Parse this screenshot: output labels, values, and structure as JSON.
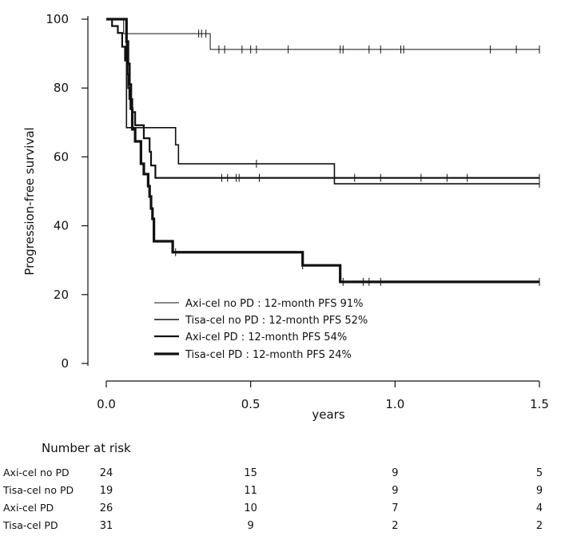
{
  "chart_data": {
    "type": "line",
    "title": "",
    "xlabel": "years",
    "ylabel": "Progression-free survival",
    "xlim": [
      0,
      1.5
    ],
    "ylim": [
      0,
      100
    ],
    "x_ticks": [
      "0.0",
      "0.5",
      "1.0",
      "1.5"
    ],
    "y_ticks": [
      "0",
      "20",
      "40",
      "60",
      "80",
      "100"
    ],
    "grid": false,
    "legend_position": "bottom-center",
    "series": [
      {
        "name": "Axi-cel no PD : 12-month PFS 91%",
        "line_width": 1,
        "steps": [
          [
            0,
            100
          ],
          [
            0.06,
            95.8
          ],
          [
            0.36,
            91.2
          ],
          [
            1.5,
            91.2
          ]
        ],
        "censors": [
          0.32,
          0.33,
          0.345,
          0.39,
          0.41,
          0.47,
          0.5,
          0.52,
          0.63,
          0.81,
          0.82,
          0.91,
          0.95,
          1.02,
          1.03,
          1.33,
          1.42,
          1.5
        ]
      },
      {
        "name": "Tisa-cel no PD : 12-month PFS 52%",
        "line_width": 1.6,
        "steps": [
          [
            0,
            100
          ],
          [
            0.07,
            68.5
          ],
          [
            0.24,
            63.5
          ],
          [
            0.25,
            58
          ],
          [
            0.79,
            52.2
          ],
          [
            1.5,
            52.2
          ]
        ],
        "censors": [
          0.52,
          1.5
        ]
      },
      {
        "name": "Axi-cel PD : 12-month PFS 54%",
        "line_width": 2.2,
        "steps": [
          [
            0,
            100
          ],
          [
            0.02,
            98
          ],
          [
            0.04,
            96
          ],
          [
            0.055,
            92
          ],
          [
            0.065,
            88
          ],
          [
            0.072,
            84
          ],
          [
            0.076,
            80
          ],
          [
            0.08,
            76.8
          ],
          [
            0.09,
            73
          ],
          [
            0.1,
            69.2
          ],
          [
            0.13,
            65.4
          ],
          [
            0.15,
            61.5
          ],
          [
            0.155,
            57.5
          ],
          [
            0.17,
            53.9
          ],
          [
            1.5,
            53.9
          ]
        ],
        "censors": [
          0.4,
          0.42,
          0.45,
          0.46,
          0.53,
          0.86,
          0.95,
          1.09,
          1.18,
          1.25,
          1.5
        ]
      },
      {
        "name": "Tisa-cel PD : 12-month PFS 24%",
        "line_width": 3.2,
        "steps": [
          [
            0,
            100
          ],
          [
            0.07,
            93.5
          ],
          [
            0.075,
            87
          ],
          [
            0.08,
            81
          ],
          [
            0.085,
            74
          ],
          [
            0.09,
            68
          ],
          [
            0.1,
            64.5
          ],
          [
            0.12,
            58
          ],
          [
            0.13,
            55
          ],
          [
            0.145,
            51.5
          ],
          [
            0.15,
            48.5
          ],
          [
            0.155,
            45
          ],
          [
            0.16,
            42
          ],
          [
            0.165,
            35.5
          ],
          [
            0.23,
            32.3
          ],
          [
            0.68,
            28.5
          ],
          [
            0.81,
            23.7
          ],
          [
            1.5,
            23.7
          ]
        ],
        "censors": [
          0.24,
          0.68,
          0.82,
          0.89,
          0.91,
          0.95,
          1.5
        ]
      }
    ],
    "risk_table": {
      "title": "Number at risk",
      "time_points": [
        0,
        0.5,
        1.0,
        1.5
      ],
      "rows": [
        {
          "label": "Axi-cel no PD",
          "counts": [
            "24",
            "15",
            "9",
            "5"
          ]
        },
        {
          "label": "Tisa-cel no PD",
          "counts": [
            "19",
            "11",
            "9",
            "9"
          ]
        },
        {
          "label": "Axi-cel PD",
          "counts": [
            "26",
            "10",
            "7",
            "4"
          ]
        },
        {
          "label": "Tisa-cel PD",
          "counts": [
            "31",
            "9",
            "2",
            "2"
          ]
        }
      ]
    }
  }
}
